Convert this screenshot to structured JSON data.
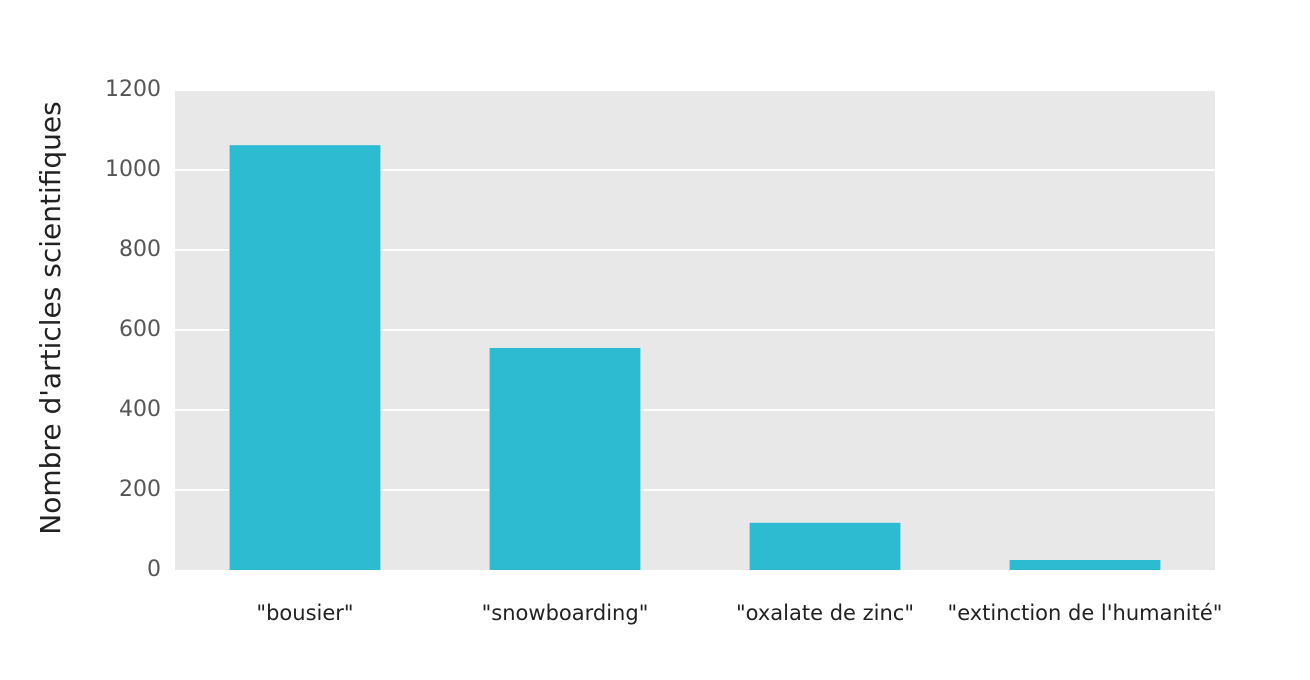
{
  "chart_data": {
    "type": "bar",
    "categories": [
      "\"bousier\"",
      "\"snowboarding\"",
      "\"oxalate de zinc\"",
      "\"extinction de l'humanité\""
    ],
    "values": [
      1062,
      555,
      118,
      25
    ],
    "title": "",
    "xlabel": "",
    "ylabel": "Nombre d'articles scientifiques",
    "ylim": [
      0,
      1200
    ],
    "yticks": [
      0,
      200,
      400,
      600,
      800,
      1000,
      1200
    ],
    "grid": true,
    "bar_color": "#2dbbd1",
    "plot_background": "#e8e8e8"
  }
}
